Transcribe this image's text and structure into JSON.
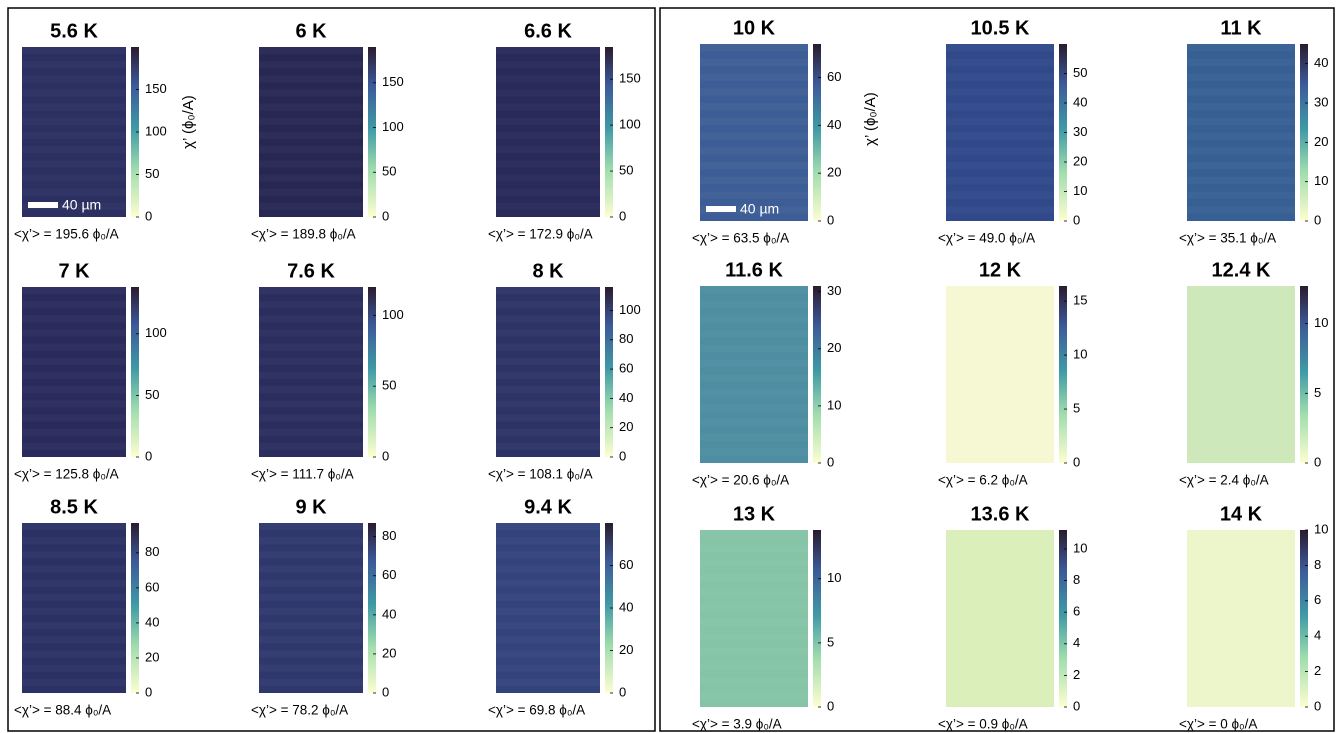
{
  "panels": [
    {
      "title": "5.6 K",
      "clim": [
        0,
        200
      ],
      "cticks": [
        0,
        50,
        100,
        150
      ],
      "color": "#2b2f62",
      "mean": "<χ’> = 195.6 ϕ₀/A",
      "scale_bar": "40 µm",
      "colorbar_label": "χ’ (ϕ₀/A)"
    },
    {
      "title": "6 K",
      "clim": [
        0,
        190
      ],
      "cticks": [
        0,
        50,
        100,
        150
      ],
      "color": "#272753",
      "mean": "<χ’> = 189.8 ϕ₀/A"
    },
    {
      "title": "6.6 K",
      "clim": [
        0,
        185
      ],
      "cticks": [
        0,
        50,
        100,
        150
      ],
      "color": "#29295a",
      "mean": "<χ’> = 172.9 ϕ₀/A"
    },
    {
      "title": "7 K",
      "clim": [
        0,
        138
      ],
      "cticks": [
        0,
        50,
        100
      ],
      "color": "#2a2b5c",
      "mean": "<χ’> = 125.8 ϕ₀/A"
    },
    {
      "title": "7.6 K",
      "clim": [
        0,
        120
      ],
      "cticks": [
        0,
        50,
        100
      ],
      "color": "#2b2d5e",
      "mean": "<χ’> = 111.7 ϕ₀/A"
    },
    {
      "title": "8 K",
      "clim": [
        0,
        116
      ],
      "cticks": [
        0,
        20,
        40,
        60,
        80,
        100
      ],
      "color": "#2d3366",
      "mean": "<χ’> = 108.1 ϕ₀/A"
    },
    {
      "title": "8.5 K",
      "clim": [
        0,
        97
      ],
      "cticks": [
        0,
        20,
        40,
        60,
        80
      ],
      "color": "#2c3165",
      "mean": "<χ’> = 88.4 ϕ₀/A"
    },
    {
      "title": "9 K",
      "clim": [
        0,
        87
      ],
      "cticks": [
        0,
        20,
        40,
        60,
        80
      ],
      "color": "#2e386c",
      "mean": "<χ’> = 78.2 ϕ₀/A"
    },
    {
      "title": "9.4 K",
      "clim": [
        0,
        80
      ],
      "cticks": [
        0,
        20,
        40,
        60
      ],
      "color": "#33437c",
      "mean": "<χ’> = 69.8 ϕ₀/A"
    },
    {
      "title": "10 K",
      "clim": [
        0,
        74
      ],
      "cticks": [
        0,
        20,
        40,
        60
      ],
      "color": "#3c5d95",
      "mean": "<χ’> = 63.5 ϕ₀/A",
      "scale_bar": "40 µm",
      "colorbar_label": "χ’ (ϕ₀/A)"
    },
    {
      "title": "10.5 K",
      "clim": [
        0,
        60
      ],
      "cticks": [
        0,
        10,
        20,
        30,
        40,
        50
      ],
      "color": "#30498a",
      "mean": "<χ’> = 49.0 ϕ₀/A"
    },
    {
      "title": "11 K",
      "clim": [
        0,
        45
      ],
      "cticks": [
        0,
        10,
        20,
        30,
        40
      ],
      "color": "#365f93",
      "mean": "<χ’> = 35.1 ϕ₀/A"
    },
    {
      "title": "11.6 K",
      "clim": [
        0,
        31
      ],
      "cticks": [
        0,
        10,
        20,
        30
      ],
      "color": "#4d8ea2",
      "mean": "<χ’> = 20.6 ϕ₀/A"
    },
    {
      "title": "12 K",
      "clim": [
        0,
        16.4
      ],
      "cticks": [
        0,
        5,
        10,
        15
      ],
      "color": "#f6f8d2",
      "mean": "<χ’> = 6.2 ϕ₀/A"
    },
    {
      "title": "12.4 K",
      "clim": [
        0,
        12.7
      ],
      "cticks": [
        0,
        5,
        10
      ],
      "color": "#cde8b9",
      "mean": "<χ’> = 2.4 ϕ₀/A"
    },
    {
      "title": "13 K",
      "clim": [
        0,
        13.8
      ],
      "cticks": [
        0,
        5,
        10
      ],
      "color": "#86c4a6",
      "mean": "<χ’> = 3.9 ϕ₀/A"
    },
    {
      "title": "13.6 K",
      "clim": [
        0,
        11.2
      ],
      "cticks": [
        0,
        2,
        4,
        6,
        8,
        10
      ],
      "color": "#daefb9",
      "mean": "<χ’> = 0.9 ϕ₀/A"
    },
    {
      "title": "14 K",
      "clim": [
        0,
        10
      ],
      "cticks": [
        0,
        2,
        4,
        6,
        8,
        10
      ],
      "color": "#edf6ca",
      "mean": "<χ’> = 0 ϕ₀/A"
    }
  ]
}
